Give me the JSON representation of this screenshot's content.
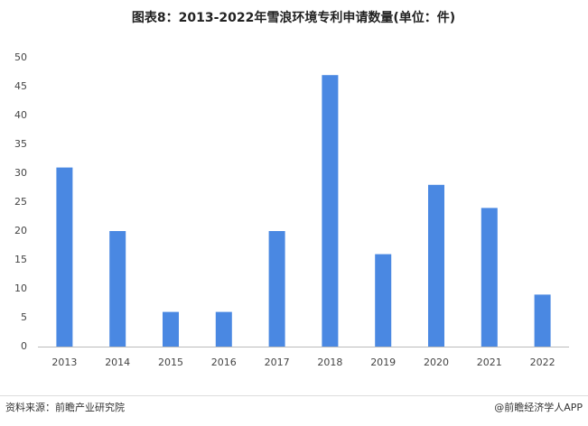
{
  "chart_data": {
    "type": "bar",
    "title": "图表8：2013-2022年雪浪环境专利申请数量(单位：件)",
    "categories": [
      "2013",
      "2014",
      "2015",
      "2016",
      "2017",
      "2018",
      "2019",
      "2020",
      "2021",
      "2022"
    ],
    "values": [
      31,
      20,
      6,
      6,
      20,
      47,
      16,
      28,
      24,
      9
    ],
    "color": "#4a88e2",
    "ylim": [
      0,
      50
    ],
    "yticks": [
      0,
      5,
      10,
      15,
      20,
      25,
      30,
      35,
      40,
      45,
      50
    ],
    "grid": false
  },
  "footer": {
    "source": "资料来源：前瞻产业研究院",
    "credit": "@前瞻经济学人APP"
  }
}
